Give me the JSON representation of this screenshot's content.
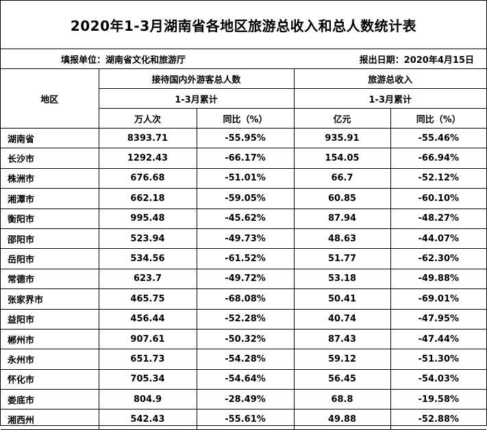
{
  "title": "2020年1-3月湖南省各地区旅游总收入和总人数统计表",
  "info": {
    "unit_label": "填报单位：湖南省文化和旅游厅",
    "date_label": "报出日期：2020年4月15日"
  },
  "header": {
    "region": "地区",
    "visitors_group": "接待国内外游客总人数",
    "income_group": "旅游总收入",
    "cumulative": "1-3月累计",
    "visitors_unit": "万人次",
    "income_unit": "亿元",
    "yoy": "同比（%）"
  },
  "rows": [
    {
      "region": "湖南省",
      "visitors": "8393.71",
      "visitors_yoy": "-55.95%",
      "income": "935.91",
      "income_yoy": "-55.46%"
    },
    {
      "region": "长沙市",
      "visitors": "1292.43",
      "visitors_yoy": "-66.17%",
      "income": "154.05",
      "income_yoy": "-66.94%"
    },
    {
      "region": "株洲市",
      "visitors": "676.68",
      "visitors_yoy": "-51.01%",
      "income": "66.7",
      "income_yoy": "-52.12%"
    },
    {
      "region": "湘潭市",
      "visitors": "662.18",
      "visitors_yoy": "-59.05%",
      "income": "60.85",
      "income_yoy": "-60.10%"
    },
    {
      "region": "衡阳市",
      "visitors": "995.48",
      "visitors_yoy": "-45.62%",
      "income": "87.94",
      "income_yoy": "-48.27%"
    },
    {
      "region": "邵阳市",
      "visitors": "523.94",
      "visitors_yoy": "-49.73%",
      "income": "48.63",
      "income_yoy": "-44.07%"
    },
    {
      "region": "岳阳市",
      "visitors": "534.56",
      "visitors_yoy": "-61.52%",
      "income": "51.77",
      "income_yoy": "-62.30%"
    },
    {
      "region": "常德市",
      "visitors": "623.7",
      "visitors_yoy": "-49.72%",
      "income": "53.18",
      "income_yoy": "-49.88%"
    },
    {
      "region": "张家界市",
      "visitors": "465.75",
      "visitors_yoy": "-68.08%",
      "income": "50.41",
      "income_yoy": "-69.01%"
    },
    {
      "region": "益阳市",
      "visitors": "456.44",
      "visitors_yoy": "-52.28%",
      "income": "40.74",
      "income_yoy": "-47.95%"
    },
    {
      "region": "郴州市",
      "visitors": "907.61",
      "visitors_yoy": "-50.32%",
      "income": "87.43",
      "income_yoy": "-47.44%"
    },
    {
      "region": "永州市",
      "visitors": "651.73",
      "visitors_yoy": "-54.28%",
      "income": "59.12",
      "income_yoy": "-51.30%"
    },
    {
      "region": "怀化市",
      "visitors": "705.34",
      "visitors_yoy": "-54.64%",
      "income": "56.45",
      "income_yoy": "-54.03%"
    },
    {
      "region": "娄底市",
      "visitors": "804.9",
      "visitors_yoy": "-28.49%",
      "income": "68.8",
      "income_yoy": "-19.58%"
    },
    {
      "region": "湘西州",
      "visitors": "542.43",
      "visitors_yoy": "-55.61%",
      "income": "49.88",
      "income_yoy": "-52.88%"
    }
  ]
}
